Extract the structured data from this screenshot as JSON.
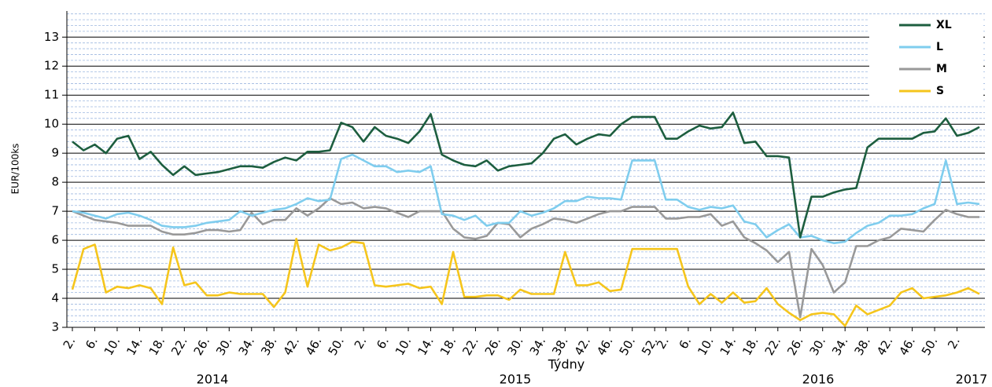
{
  "chart_data": {
    "type": "line",
    "y_label": "EUR/100ks",
    "x_label": "Týdny",
    "years": [
      "2014",
      "2015",
      "2016",
      "2017"
    ],
    "categories": [
      "2.",
      null,
      "6.",
      null,
      "10.",
      null,
      "14.",
      null,
      "18.",
      null,
      "22.",
      null,
      "26.",
      null,
      "30.",
      null,
      "34.",
      null,
      "38.",
      null,
      "42.",
      null,
      "46.",
      null,
      "50.",
      null,
      "2.",
      null,
      "6.",
      null,
      "10.",
      null,
      "14.",
      null,
      "18.",
      null,
      "22.",
      null,
      "26.",
      null,
      "30.",
      null,
      "34.",
      null,
      "38.",
      null,
      "42.",
      null,
      "46.",
      null,
      "50.",
      null,
      "52.",
      "2.",
      null,
      "6.",
      null,
      "10.",
      null,
      "14.",
      null,
      "18.",
      null,
      "22.",
      null,
      "26.",
      null,
      "30.",
      null,
      "34.",
      null,
      "38.",
      null,
      "42.",
      null,
      "46.",
      null,
      "50.",
      null,
      "2.",
      null,
      null
    ],
    "series": [
      {
        "name": "XL",
        "color": "#1d5e3f",
        "values": [
          9.4,
          9.1,
          9.3,
          9.0,
          9.5,
          9.6,
          8.8,
          9.05,
          8.6,
          8.25,
          8.55,
          8.25,
          8.3,
          8.35,
          8.45,
          8.55,
          8.55,
          8.5,
          8.7,
          8.85,
          8.75,
          9.05,
          9.05,
          9.1,
          10.05,
          9.9,
          9.4,
          9.9,
          9.6,
          9.5,
          9.35,
          9.75,
          10.35,
          8.95,
          8.75,
          8.6,
          8.55,
          8.75,
          8.4,
          8.55,
          8.6,
          8.65,
          9.0,
          9.5,
          9.65,
          9.3,
          9.5,
          9.65,
          9.6,
          10.0,
          10.25,
          10.25,
          10.25,
          9.5,
          9.5,
          9.75,
          9.95,
          9.85,
          9.9,
          10.4,
          9.35,
          9.4,
          8.9,
          8.9,
          8.85,
          6.1,
          7.5,
          7.5,
          7.65,
          7.75,
          7.8,
          9.2,
          9.5,
          9.5,
          9.5,
          9.5,
          9.7,
          9.75,
          10.2,
          9.6,
          9.7,
          9.9
        ]
      },
      {
        "name": "L",
        "color": "#7fcdee",
        "values": [
          7.0,
          6.95,
          6.85,
          6.75,
          6.9,
          6.95,
          6.85,
          6.7,
          6.5,
          6.45,
          6.45,
          6.5,
          6.6,
          6.65,
          6.7,
          7.0,
          6.85,
          6.95,
          7.05,
          7.1,
          7.25,
          7.45,
          7.35,
          7.4,
          8.8,
          8.95,
          8.75,
          8.55,
          8.55,
          8.35,
          8.4,
          8.35,
          8.55,
          6.9,
          6.85,
          6.7,
          6.85,
          6.5,
          6.6,
          6.6,
          7.0,
          6.85,
          6.95,
          7.1,
          7.35,
          7.35,
          7.5,
          7.45,
          7.45,
          7.4,
          8.75,
          8.75,
          8.75,
          7.4,
          7.4,
          7.15,
          7.05,
          7.15,
          7.1,
          7.2,
          6.65,
          6.55,
          6.1,
          6.35,
          6.55,
          6.1,
          6.15,
          6.0,
          5.9,
          5.95,
          6.25,
          6.5,
          6.6,
          6.85,
          6.85,
          6.9,
          7.1,
          7.25,
          8.75,
          7.25,
          7.3,
          7.25
        ]
      },
      {
        "name": "M",
        "color": "#999999",
        "values": [
          7.0,
          6.85,
          6.7,
          6.65,
          6.6,
          6.5,
          6.5,
          6.5,
          6.3,
          6.2,
          6.2,
          6.25,
          6.35,
          6.35,
          6.3,
          6.35,
          6.95,
          6.55,
          6.7,
          6.7,
          7.1,
          6.85,
          7.1,
          7.45,
          7.25,
          7.3,
          7.1,
          7.15,
          7.1,
          6.95,
          6.8,
          7.0,
          7.0,
          7.0,
          6.4,
          6.1,
          6.05,
          6.15,
          6.6,
          6.55,
          6.1,
          6.4,
          6.55,
          6.75,
          6.7,
          6.6,
          6.75,
          6.9,
          7.0,
          7.0,
          7.15,
          7.15,
          7.15,
          6.75,
          6.75,
          6.8,
          6.8,
          6.9,
          6.5,
          6.65,
          6.1,
          5.9,
          5.65,
          5.25,
          5.6,
          3.35,
          5.7,
          5.15,
          4.2,
          4.55,
          5.8,
          5.8,
          6.0,
          6.1,
          6.4,
          6.35,
          6.3,
          6.7,
          7.05,
          6.9,
          6.8,
          6.8
        ]
      },
      {
        "name": "S",
        "color": "#f5c51c",
        "values": [
          4.3,
          5.7,
          5.85,
          4.2,
          4.4,
          4.35,
          4.45,
          4.35,
          3.8,
          5.75,
          4.45,
          4.55,
          4.1,
          4.1,
          4.2,
          4.15,
          4.15,
          4.15,
          3.7,
          4.2,
          6.05,
          4.4,
          5.85,
          5.65,
          5.75,
          5.95,
          5.9,
          4.45,
          4.4,
          4.45,
          4.5,
          4.35,
          4.4,
          3.8,
          5.6,
          4.05,
          4.05,
          4.1,
          4.1,
          3.95,
          4.3,
          4.15,
          4.15,
          4.15,
          5.6,
          4.45,
          4.45,
          4.55,
          4.25,
          4.3,
          5.7,
          5.7,
          5.7,
          5.7,
          5.7,
          4.4,
          3.8,
          4.15,
          3.85,
          4.2,
          3.85,
          3.9,
          4.35,
          3.8,
          3.5,
          3.25,
          3.45,
          3.5,
          3.45,
          3.05,
          3.75,
          3.45,
          3.6,
          3.75,
          4.2,
          4.35,
          4.0,
          4.05,
          4.1,
          4.2,
          4.35,
          4.15
        ]
      }
    ],
    "ylim": [
      3,
      13.9
    ],
    "yticks": [
      3,
      4,
      5,
      6,
      7,
      8,
      9,
      10,
      11,
      12,
      13
    ],
    "grid": true,
    "minor_grid": true,
    "legend": "top-right"
  }
}
